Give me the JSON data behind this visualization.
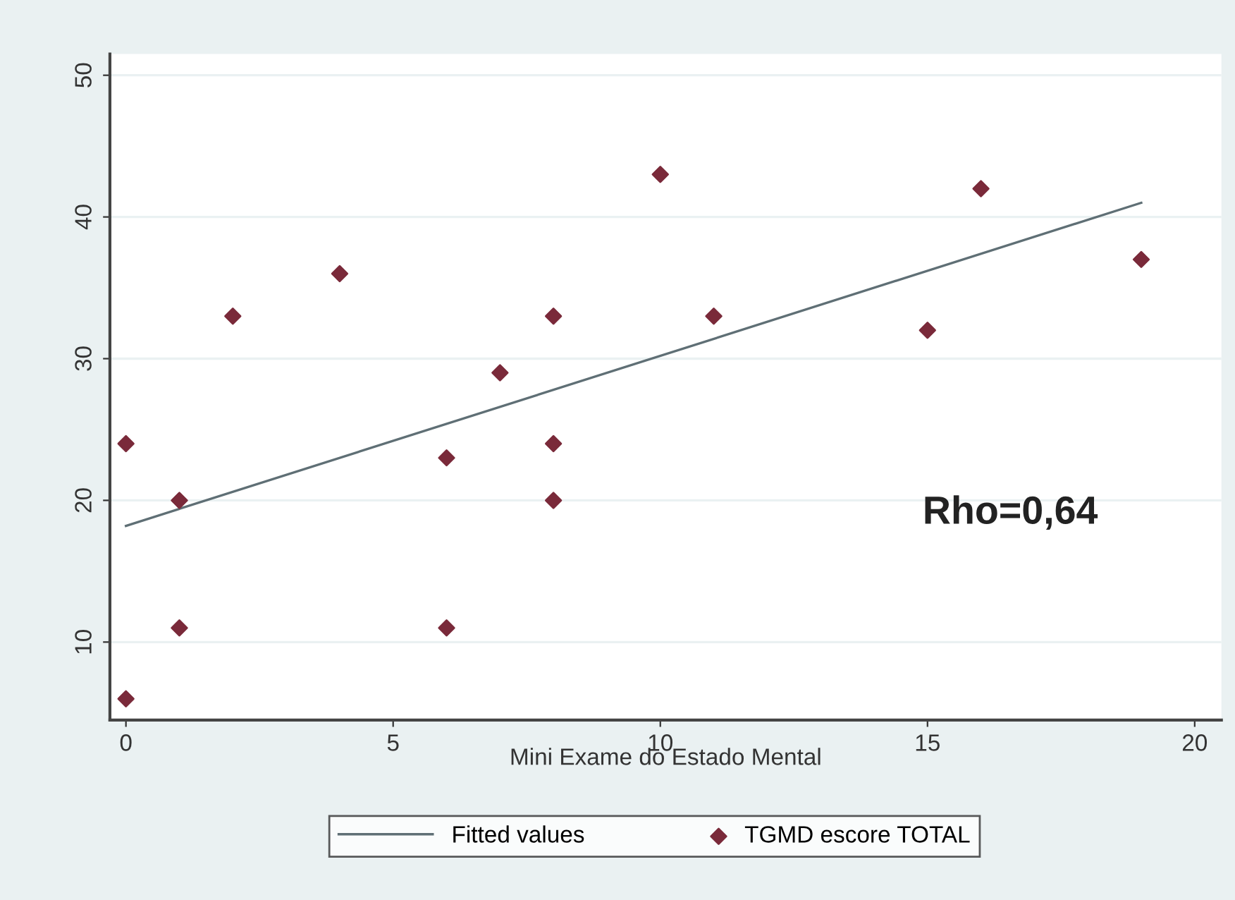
{
  "chart_data": {
    "type": "scatter",
    "xlabel": "Mini Exame do Estado Mental",
    "xlim": [
      -0.3,
      20.5
    ],
    "ylim": [
      4.5,
      51.5
    ],
    "xticks": [
      0,
      5,
      10,
      15,
      20
    ],
    "yticks": [
      10,
      20,
      30,
      40,
      50
    ],
    "grid": "y",
    "legend": "bottom",
    "marker": "diamond",
    "series": [
      {
        "name": "Fitted values",
        "type": "line",
        "color": "#5f6f75",
        "line_style": "solid",
        "marker": "none",
        "x": [
          0,
          19
        ],
        "values": [
          18.2,
          41
        ]
      },
      {
        "name": "TGMD escore TOTAL",
        "color": "#7a2a3a",
        "x": [
          0,
          0,
          1,
          1,
          2,
          4,
          6,
          6,
          7,
          8,
          8,
          8,
          10,
          11,
          15,
          16,
          19
        ],
        "values": [
          24,
          6,
          20,
          11,
          33,
          36,
          23,
          11,
          29,
          33,
          24,
          20,
          43,
          33,
          32,
          42,
          37
        ]
      }
    ],
    "annotations": [
      "Rho=0,64"
    ]
  }
}
